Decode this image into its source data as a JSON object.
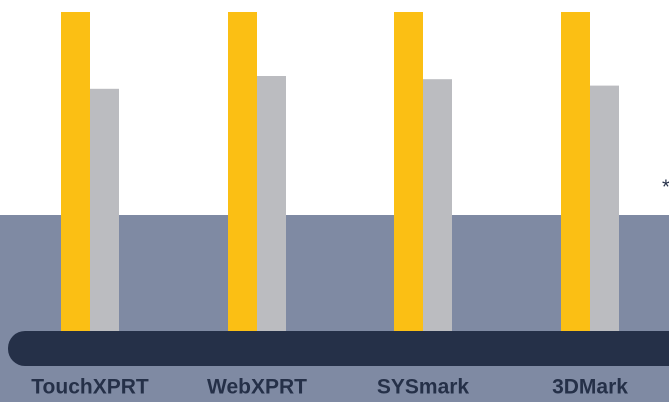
{
  "chart_data": {
    "type": "bar",
    "categories": [
      "TouchXPRT",
      "WebXPRT",
      "SYSmark",
      "3DMark"
    ],
    "series": [
      {
        "color": "#fbbf14",
        "values": [
          100,
          100,
          100,
          100
        ]
      },
      {
        "color": "#bbbcc0",
        "values": [
          76,
          80,
          79,
          77
        ]
      }
    ],
    "ylim": [
      0,
      100
    ],
    "annotation": "*"
  }
}
